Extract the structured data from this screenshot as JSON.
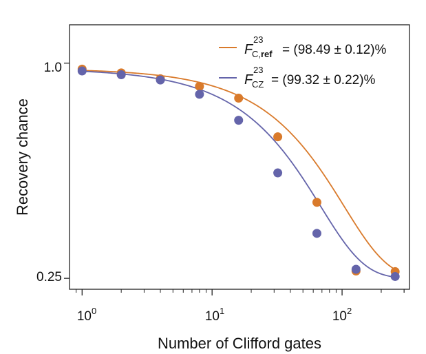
{
  "chart_data": {
    "type": "scatter",
    "xscale": "log",
    "yscale": "log",
    "xlabel": "Number of Clifford gates",
    "ylabel": "Recovery chance",
    "xlim": [
      0.8,
      330
    ],
    "ylim": [
      0.233,
      1.28
    ],
    "xticks": [
      {
        "value": 1,
        "base": "10",
        "exp": "0"
      },
      {
        "value": 10,
        "base": "10",
        "exp": "1"
      },
      {
        "value": 100,
        "base": "10",
        "exp": "2"
      }
    ],
    "yticks": [
      {
        "value": 1.0,
        "label": "1.0"
      },
      {
        "value": 0.25,
        "label": "0.25"
      }
    ],
    "series": [
      {
        "name": "ref",
        "color": "#d97a2b",
        "legend": {
          "symbol": "F",
          "sup": "23",
          "sub": "C,",
          "sub_bold": "ref",
          "text": "= (98.49 ± 0.12)%"
        },
        "x": [
          1,
          2,
          4,
          8,
          16,
          32,
          64,
          128,
          256
        ],
        "y": [
          0.962,
          0.939,
          0.904,
          0.861,
          0.798,
          0.622,
          0.408,
          0.262,
          0.261
        ],
        "fit": {
          "A": 0.715,
          "B": 0.25,
          "p": 0.9849
        }
      },
      {
        "name": "cz",
        "color": "#6464aa",
        "legend": {
          "symbol": "F",
          "sup": "23",
          "sub": "CZ",
          "sub_bold": "",
          "text": "= (99.32 ± 0.22)%"
        },
        "x": [
          1,
          2,
          4,
          8,
          16,
          32,
          64,
          128,
          256
        ],
        "y": [
          0.951,
          0.928,
          0.897,
          0.818,
          0.692,
          0.493,
          0.334,
          0.265,
          0.253
        ],
        "fit": {
          "A": 0.715,
          "B": 0.25,
          "p": 0.9772
        }
      }
    ]
  }
}
